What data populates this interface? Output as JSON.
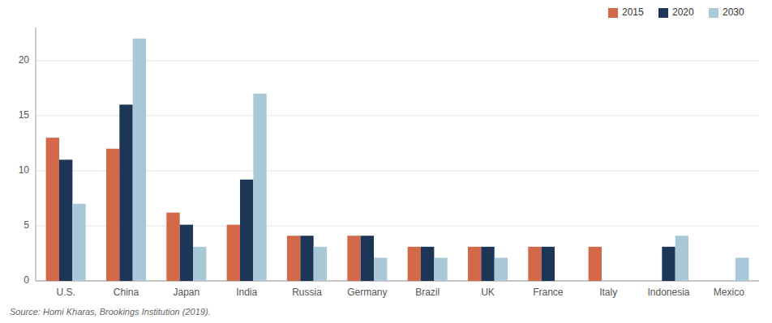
{
  "chart_data": {
    "type": "bar",
    "categories": [
      "U.S.",
      "China",
      "Japan",
      "India",
      "Russia",
      "Germany",
      "Brazil",
      "UK",
      "France",
      "Italy",
      "Indonesia",
      "Mexico"
    ],
    "series": [
      {
        "name": "2015",
        "color": "#d4694a",
        "values": [
          13,
          12,
          6.2,
          5.1,
          4.1,
          4.1,
          3.1,
          3.1,
          3.1,
          3.1,
          0,
          0
        ]
      },
      {
        "name": "2020",
        "color": "#1d3557",
        "values": [
          11,
          16,
          5.1,
          9.2,
          4.1,
          4.1,
          3.1,
          3.1,
          3.1,
          0,
          3.1,
          0
        ]
      },
      {
        "name": "2030",
        "color": "#a8c8d8",
        "values": [
          7,
          22,
          3.1,
          17,
          3.1,
          2.1,
          2.1,
          2.1,
          0,
          0,
          4.1,
          2.1
        ]
      }
    ],
    "ylim": [
      0,
      23
    ],
    "yticks": [
      0,
      5,
      10,
      15,
      20
    ],
    "grid": true,
    "legend": "upper right",
    "annotations": [
      "Source: Homi Kharas, Brookings Institution (2019)."
    ]
  }
}
